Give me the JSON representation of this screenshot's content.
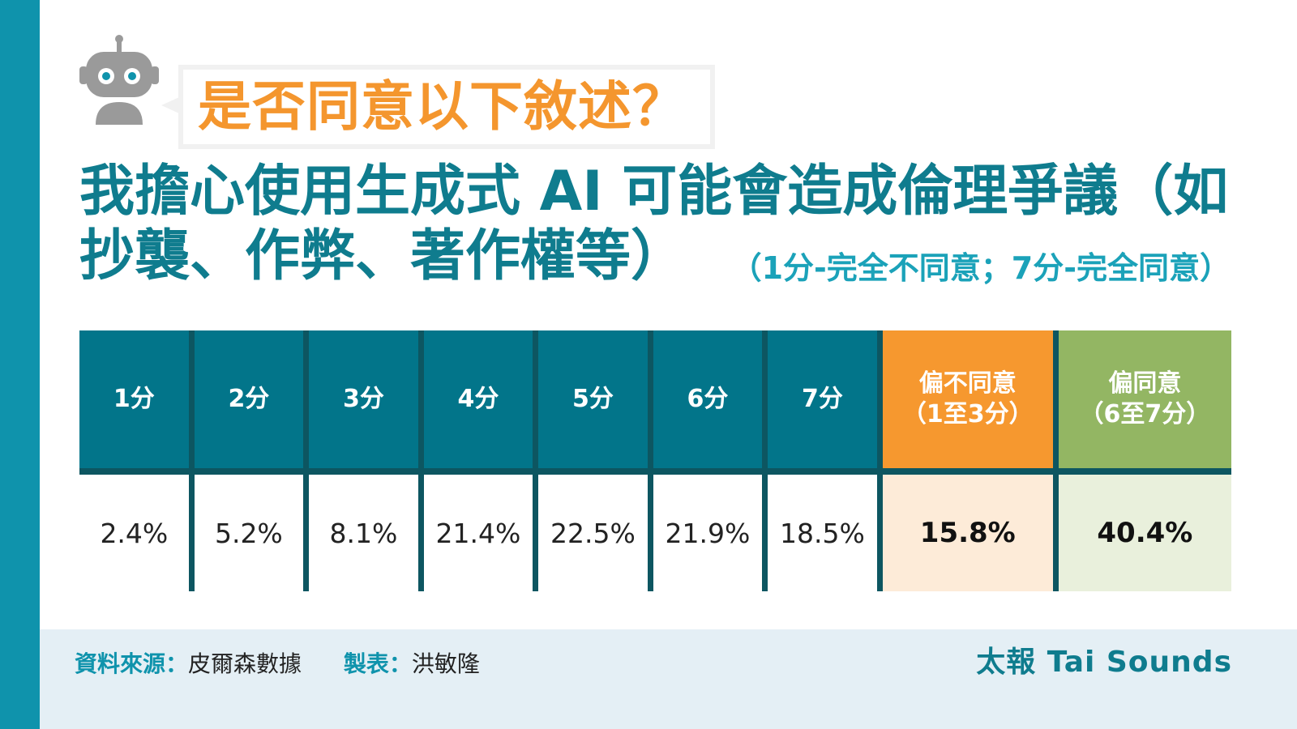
{
  "header": {
    "question": "是否同意以下敘述？",
    "statement_line1": "我擔心使用生成式 AI 可能會造成倫理爭議（如",
    "statement_line2": "抄襲、作弊、著作權等）",
    "scale_note": "（1分-完全不同意；7分-完全同意）"
  },
  "chart_data": {
    "type": "table",
    "columns": [
      "1分",
      "2分",
      "3分",
      "4分",
      "5分",
      "6分",
      "7分"
    ],
    "values": [
      "2.4%",
      "5.2%",
      "8.1%",
      "21.4%",
      "22.5%",
      "21.9%",
      "18.5%"
    ],
    "summary": [
      {
        "label_line1": "偏不同意",
        "label_line2": "（1至3分）",
        "value": "15.8%",
        "color": "#f6982f"
      },
      {
        "label_line1": "偏同意",
        "label_line2": "（6至7分）",
        "value": "40.4%",
        "color": "#93b663"
      }
    ]
  },
  "footer": {
    "source_label": "資料來源：",
    "source_value": "皮爾森數據",
    "maker_label": "製表：",
    "maker_value": "洪敏隆",
    "brand": "太報 Tai Sounds"
  },
  "colors": {
    "accent_bar": "#0f93ac",
    "header_teal": "#02758a",
    "question_orange": "#f4962e",
    "statement_teal": "#0f7c8e"
  },
  "icons": {
    "mascot": "robot-icon"
  }
}
